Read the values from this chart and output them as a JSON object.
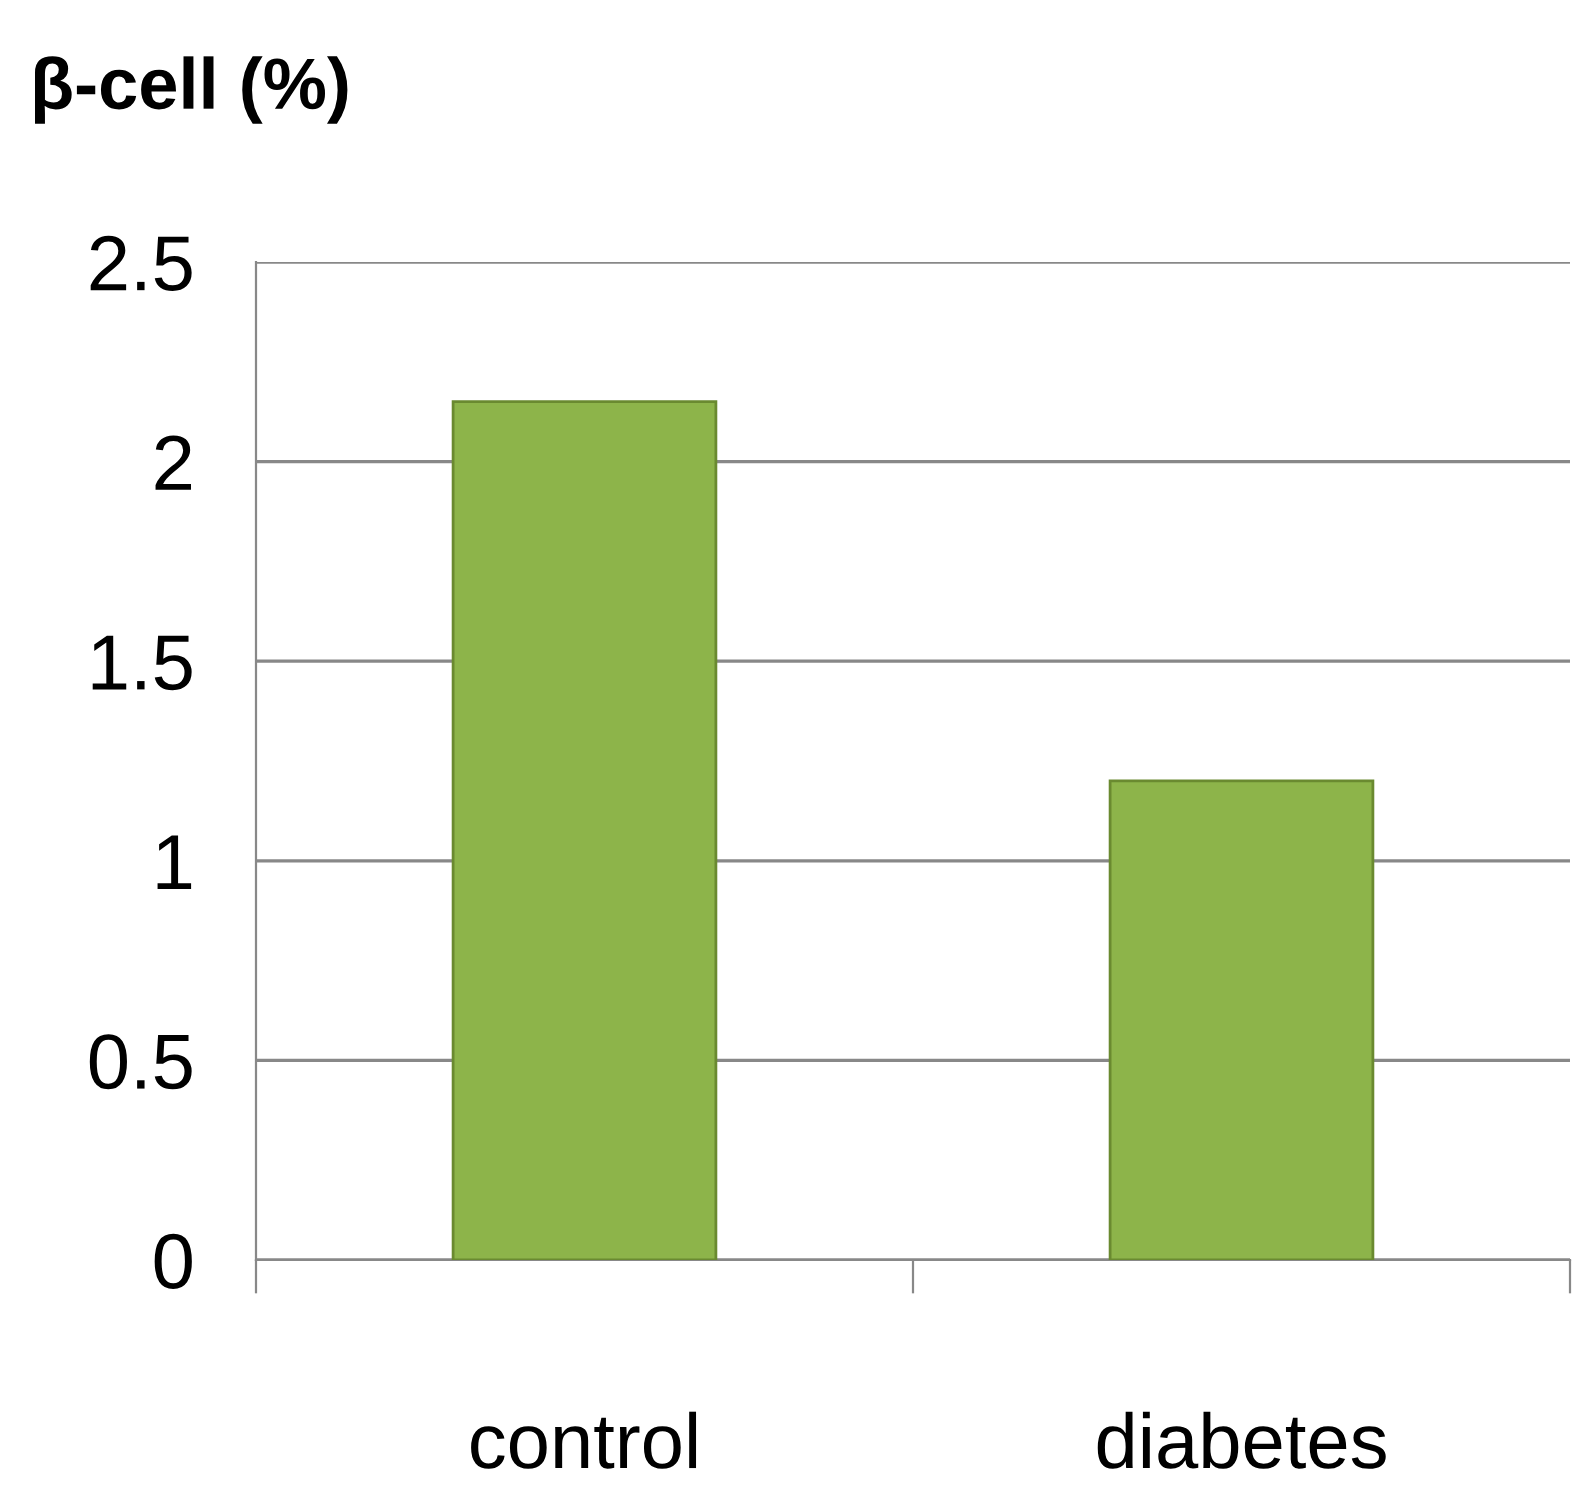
{
  "chart_data": {
    "type": "bar",
    "ylabel": "β-cell (%)",
    "categories": [
      "control",
      "diabetes"
    ],
    "values": [
      2.15,
      1.2
    ],
    "color": "#8db44a",
    "ylim": [
      0,
      2.5
    ],
    "yticks": [
      0,
      {
        "value": 0.5,
        "label": "0.5"
      },
      1,
      {
        "value": 1.5,
        "label": "1.5"
      },
      2,
      {
        "value": 2.5,
        "label": "2.5"
      }
    ],
    "grid": "y",
    "legend": false
  }
}
